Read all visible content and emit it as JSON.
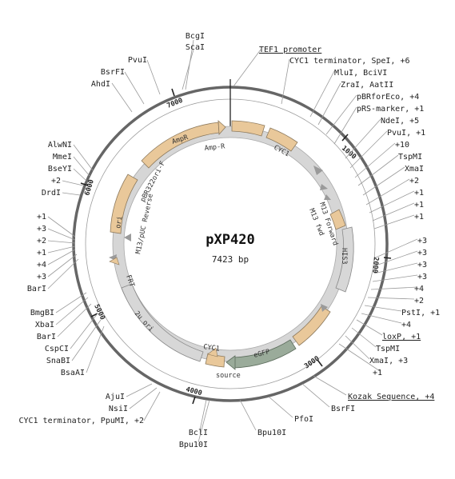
{
  "plasmid": {
    "name": "pXP420",
    "length": "7423 bp"
  },
  "ticks": [
    "1000",
    "2000",
    "3000",
    "4000",
    "5000",
    "6000",
    "7000"
  ],
  "features": {
    "ampr": "AmpR",
    "amp_r": "Amp-R",
    "cyc1_top": "CYC1",
    "m13_forward": "M13 Forward",
    "m13_fwd": "M13 fwd",
    "his3": "HIS3",
    "egfp": "eGFP",
    "cyc1_bottom": "CYC1",
    "source": "source",
    "two_u_ori": "2u ori",
    "frt": "FRT",
    "m13_puc_reverse": "M13/pUC Reverse",
    "pbr322ori_f": "pBR322ori-F",
    "ori": "ori"
  },
  "labels_right": [
    "TEF1 promoter",
    "CYC1 terminator, SpeI, +6",
    "MluI, BciVI",
    "ZraI, AatII",
    "pBRforEco, +4",
    "pRS-marker, +1",
    "NdeI, +5",
    "PvuI, +1",
    "+10",
    "TspMI",
    "XmaI",
    "+2",
    "+1",
    "+1",
    "+1",
    "+3",
    "+3",
    "+3",
    "+3",
    "+4",
    "+2",
    "PstI, +1",
    "+4",
    "loxP, +1",
    "TspMI",
    "XmaI, +3",
    "+1",
    "Kozak Sequence, +4",
    "BsrFI",
    "PfoI",
    "Bpu10I"
  ],
  "labels_left": [
    "BcgI",
    "ScaI",
    "PvuI",
    "BsrFI",
    "AhdI",
    "AlwNI",
    "MmeI",
    "BseYI",
    "+2",
    "DrdI",
    "+1",
    "+3",
    "+2",
    "+1",
    "+4",
    "+3",
    "BarI",
    "BmgBI",
    "XbaI",
    "BarI",
    "CspCI",
    "SnaBI",
    "BsaAI",
    "AjuI",
    "NsiI",
    "CYC1 terminator, PpuMI, +2",
    "BclI",
    "Bpu10I"
  ]
}
